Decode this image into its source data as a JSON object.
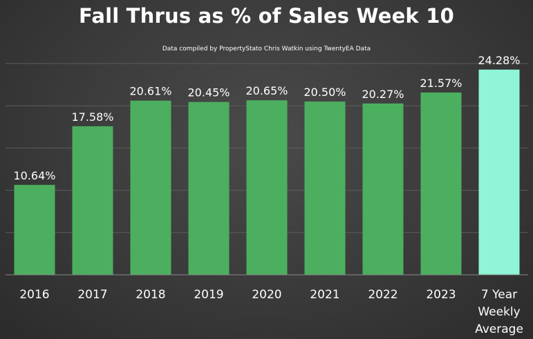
{
  "chart_data": {
    "type": "bar",
    "title": "Fall Thrus as % of Sales Week 10",
    "subtitle": "Data compiled by PropertyStato Chris Watkin using TwentyEA Data",
    "categories": [
      "2016",
      "2017",
      "2018",
      "2019",
      "2020",
      "2021",
      "2022",
      "2023",
      "7 Year Weekly Average"
    ],
    "category_lines": [
      [
        "2016"
      ],
      [
        "2017"
      ],
      [
        "2018"
      ],
      [
        "2019"
      ],
      [
        "2020"
      ],
      [
        "2021"
      ],
      [
        "2022"
      ],
      [
        "2023"
      ],
      [
        "7 Year",
        "Weekly",
        "Average"
      ]
    ],
    "values": [
      10.64,
      17.58,
      20.61,
      20.45,
      20.65,
      20.5,
      20.27,
      21.57,
      24.28
    ],
    "data_labels": [
      "10.64%",
      "17.58%",
      "20.61%",
      "20.45%",
      "20.65%",
      "20.50%",
      "20.27%",
      "21.57%",
      "24.28%"
    ],
    "ylim": [
      0,
      25
    ],
    "grid": true,
    "colors": {
      "bar": "#4caf5f",
      "highlight_bar": "#8ff5d6",
      "gridline": "#5c5c5c",
      "axis": "#8a8a8a",
      "text": "#ffffff"
    },
    "highlight_index": 8
  }
}
